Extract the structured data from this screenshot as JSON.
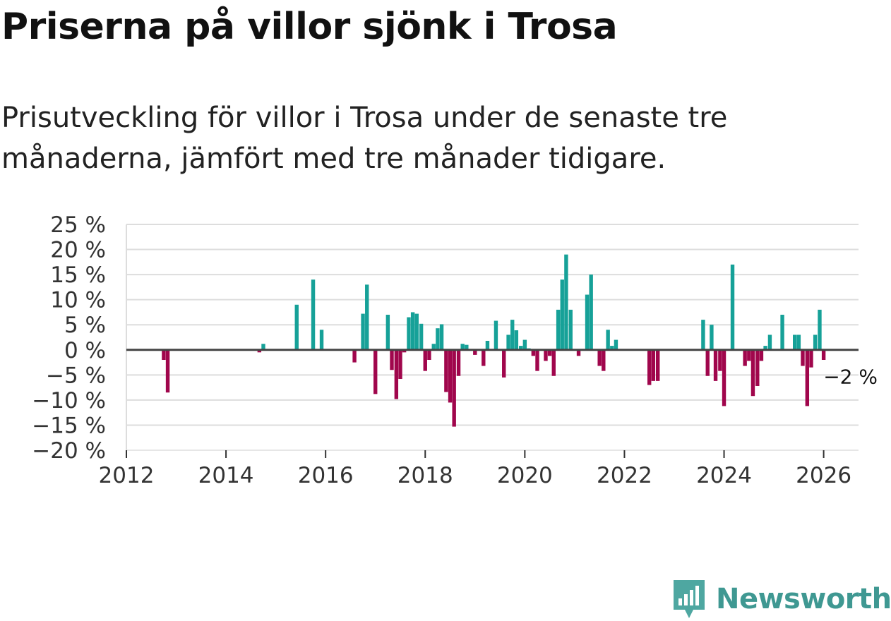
{
  "title": "Priserna på villor sjönk i Trosa",
  "subtitle": "Prisutveckling för villor i Trosa under de senaste tre månaderna, jämfört med tre månader tidigare.",
  "brand": {
    "name": "Newsworthy",
    "icon": "newsworthy-logo-icon"
  },
  "colors": {
    "positive": "#16a198",
    "negative": "#a0064c",
    "zero_line": "#444444",
    "grid": "#dddddd"
  },
  "chart_data": {
    "type": "bar",
    "title": "Priserna på villor sjönk i Trosa",
    "xlabel": "",
    "ylabel": "",
    "ylim": [
      -20,
      25
    ],
    "xlim": [
      2012,
      2026.7
    ],
    "y_ticks": [
      25,
      20,
      15,
      10,
      5,
      0,
      -5,
      -10,
      -15,
      -20
    ],
    "y_tick_labels": [
      "25 %",
      "20 %",
      "15 %",
      "10 %",
      "5 %",
      "0 %",
      "−5 %",
      "−10 %",
      "−15 %",
      "−20 %"
    ],
    "x_ticks": [
      2012,
      2014,
      2016,
      2018,
      2020,
      2022,
      2024,
      2026
    ],
    "x_tick_labels": [
      "2012",
      "2014",
      "2016",
      "2018",
      "2020",
      "2022",
      "2024",
      "2026"
    ],
    "end_label": "−2 %",
    "grid": true,
    "bars": [
      {
        "x": 2012.75,
        "y": -2
      },
      {
        "x": 2012.83,
        "y": -8.5
      },
      {
        "x": 2014.67,
        "y": -0.5
      },
      {
        "x": 2014.75,
        "y": 1.2
      },
      {
        "x": 2015.42,
        "y": 9
      },
      {
        "x": 2015.75,
        "y": 14
      },
      {
        "x": 2015.92,
        "y": 4
      },
      {
        "x": 2016.58,
        "y": -2.5
      },
      {
        "x": 2016.75,
        "y": 7.2
      },
      {
        "x": 2016.83,
        "y": 13
      },
      {
        "x": 2017.0,
        "y": -8.8
      },
      {
        "x": 2017.25,
        "y": 7
      },
      {
        "x": 2017.33,
        "y": -4
      },
      {
        "x": 2017.42,
        "y": -9.8
      },
      {
        "x": 2017.5,
        "y": -5.8
      },
      {
        "x": 2017.58,
        "y": -0.5
      },
      {
        "x": 2017.67,
        "y": 6.5
      },
      {
        "x": 2017.75,
        "y": 7.5
      },
      {
        "x": 2017.83,
        "y": 7.2
      },
      {
        "x": 2017.92,
        "y": 5.2
      },
      {
        "x": 2018.0,
        "y": -4.2
      },
      {
        "x": 2018.08,
        "y": -2
      },
      {
        "x": 2018.17,
        "y": 1.2
      },
      {
        "x": 2018.25,
        "y": 4.3
      },
      {
        "x": 2018.33,
        "y": 5.1
      },
      {
        "x": 2018.42,
        "y": -8.4
      },
      {
        "x": 2018.5,
        "y": -10.5
      },
      {
        "x": 2018.58,
        "y": -15.3
      },
      {
        "x": 2018.67,
        "y": -5.2
      },
      {
        "x": 2018.75,
        "y": 1.2
      },
      {
        "x": 2018.83,
        "y": 1
      },
      {
        "x": 2019.0,
        "y": -1
      },
      {
        "x": 2019.17,
        "y": -3.2
      },
      {
        "x": 2019.25,
        "y": 1.8
      },
      {
        "x": 2019.42,
        "y": 5.8
      },
      {
        "x": 2019.58,
        "y": -5.5
      },
      {
        "x": 2019.67,
        "y": 3
      },
      {
        "x": 2019.75,
        "y": 6
      },
      {
        "x": 2019.83,
        "y": 3.9
      },
      {
        "x": 2019.92,
        "y": 0.8
      },
      {
        "x": 2020.0,
        "y": 2
      },
      {
        "x": 2020.08,
        "y": 0.3
      },
      {
        "x": 2020.17,
        "y": -1.2
      },
      {
        "x": 2020.25,
        "y": -4.2
      },
      {
        "x": 2020.42,
        "y": -2.2
      },
      {
        "x": 2020.5,
        "y": -1.2
      },
      {
        "x": 2020.58,
        "y": -5.2
      },
      {
        "x": 2020.67,
        "y": 8
      },
      {
        "x": 2020.75,
        "y": 14
      },
      {
        "x": 2020.83,
        "y": 19
      },
      {
        "x": 2020.92,
        "y": 8
      },
      {
        "x": 2021.08,
        "y": -1.2
      },
      {
        "x": 2021.25,
        "y": 11
      },
      {
        "x": 2021.33,
        "y": 15
      },
      {
        "x": 2021.5,
        "y": -3.2
      },
      {
        "x": 2021.58,
        "y": -4.2
      },
      {
        "x": 2021.67,
        "y": 4
      },
      {
        "x": 2021.75,
        "y": 0.8
      },
      {
        "x": 2021.83,
        "y": 2
      },
      {
        "x": 2022.5,
        "y": -7
      },
      {
        "x": 2022.58,
        "y": -6.2
      },
      {
        "x": 2022.67,
        "y": -6.2
      },
      {
        "x": 2023.58,
        "y": 6
      },
      {
        "x": 2023.67,
        "y": -5.2
      },
      {
        "x": 2023.75,
        "y": 5
      },
      {
        "x": 2023.83,
        "y": -6.2
      },
      {
        "x": 2023.92,
        "y": -4.2
      },
      {
        "x": 2024.0,
        "y": -11.2
      },
      {
        "x": 2024.17,
        "y": 17
      },
      {
        "x": 2024.42,
        "y": -3.2
      },
      {
        "x": 2024.5,
        "y": -2.2
      },
      {
        "x": 2024.58,
        "y": -9.2
      },
      {
        "x": 2024.67,
        "y": -7.2
      },
      {
        "x": 2024.75,
        "y": -2.2
      },
      {
        "x": 2024.83,
        "y": 0.8
      },
      {
        "x": 2024.92,
        "y": 3
      },
      {
        "x": 2025.17,
        "y": 7
      },
      {
        "x": 2025.42,
        "y": 3
      },
      {
        "x": 2025.5,
        "y": 3
      },
      {
        "x": 2025.58,
        "y": -3.2
      },
      {
        "x": 2025.67,
        "y": -11.2
      },
      {
        "x": 2025.75,
        "y": -3.5
      },
      {
        "x": 2025.83,
        "y": 3
      },
      {
        "x": 2025.92,
        "y": 8
      },
      {
        "x": 2026.0,
        "y": -2
      }
    ]
  }
}
